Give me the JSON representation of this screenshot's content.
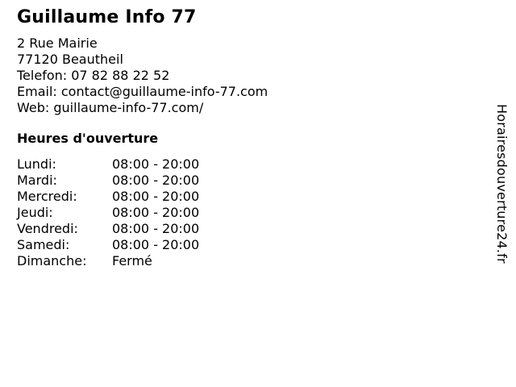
{
  "page": {
    "title": "Guillaume Info 77",
    "background_color": "#ffffff",
    "text_color": "#000000"
  },
  "contact": {
    "street": "2 Rue Mairie",
    "city": "77120 Beautheil",
    "phone_label": "Telefon:",
    "phone_value": "07 82 88 22 52",
    "email_label": "Email:",
    "email_value": "contact@guillaume-info-77.com",
    "web_label": "Web:",
    "web_value": "guillaume-info-77.com/"
  },
  "opening_hours": {
    "heading": "Heures d'ouverture",
    "rows": [
      {
        "day": "Lundi:",
        "hours": "08:00 - 20:00"
      },
      {
        "day": "Mardi:",
        "hours": "08:00 - 20:00"
      },
      {
        "day": "Mercredi:",
        "hours": "08:00 - 20:00"
      },
      {
        "day": "Jeudi:",
        "hours": "08:00 - 20:00"
      },
      {
        "day": "Vendredi:",
        "hours": "08:00 - 20:00"
      },
      {
        "day": "Samedi:",
        "hours": "08:00 - 20:00"
      },
      {
        "day": "Dimanche:",
        "hours": "Fermé"
      }
    ]
  },
  "watermark": {
    "text": "Horairesdouverture24.fr"
  }
}
